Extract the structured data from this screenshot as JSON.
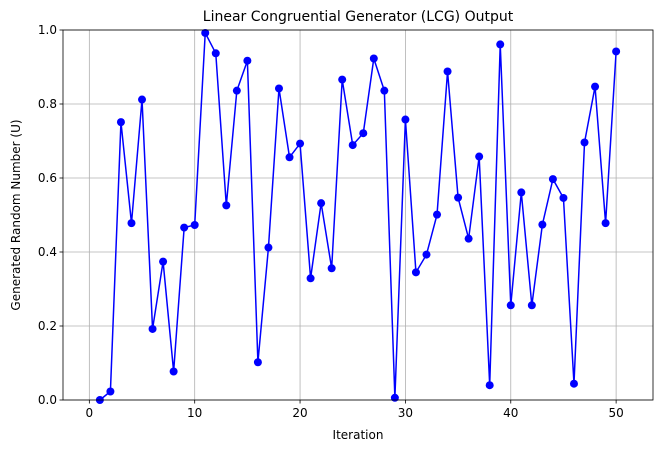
{
  "chart_data": {
    "type": "line",
    "title": "Linear Congruential Generator (LCG) Output",
    "xlabel": "Iteration",
    "ylabel": "Generated Random Number (U)",
    "xlim": [
      -2.5,
      53.5
    ],
    "ylim": [
      0,
      1
    ],
    "xticks": [
      "0",
      "10",
      "20",
      "30",
      "40",
      "50"
    ],
    "yticks": [
      "0.0",
      "0.2",
      "0.4",
      "0.6",
      "0.8",
      "1.0"
    ],
    "grid": true,
    "color": "#0000ff",
    "marker": "circle",
    "x": [
      1,
      2,
      3,
      4,
      5,
      6,
      7,
      8,
      9,
      10,
      11,
      12,
      13,
      14,
      15,
      16,
      17,
      18,
      19,
      20,
      21,
      22,
      23,
      24,
      25,
      26,
      27,
      28,
      29,
      30,
      31,
      32,
      33,
      34,
      35,
      36,
      37,
      38,
      39,
      40,
      41,
      42,
      43,
      44,
      45,
      46,
      47,
      48,
      49,
      50
    ],
    "y": [
      0.0,
      0.023,
      0.751,
      0.478,
      0.812,
      0.192,
      0.374,
      0.077,
      0.466,
      0.473,
      0.992,
      0.937,
      0.526,
      0.836,
      0.917,
      0.102,
      0.412,
      0.842,
      0.656,
      0.693,
      0.329,
      0.532,
      0.356,
      0.866,
      0.689,
      0.721,
      0.923,
      0.836,
      0.006,
      0.758,
      0.345,
      0.393,
      0.501,
      0.888,
      0.547,
      0.436,
      0.658,
      0.04,
      0.961,
      0.256,
      0.561,
      0.256,
      0.474,
      0.597,
      0.546,
      0.044,
      0.696,
      0.847,
      0.478,
      0.942
    ]
  }
}
